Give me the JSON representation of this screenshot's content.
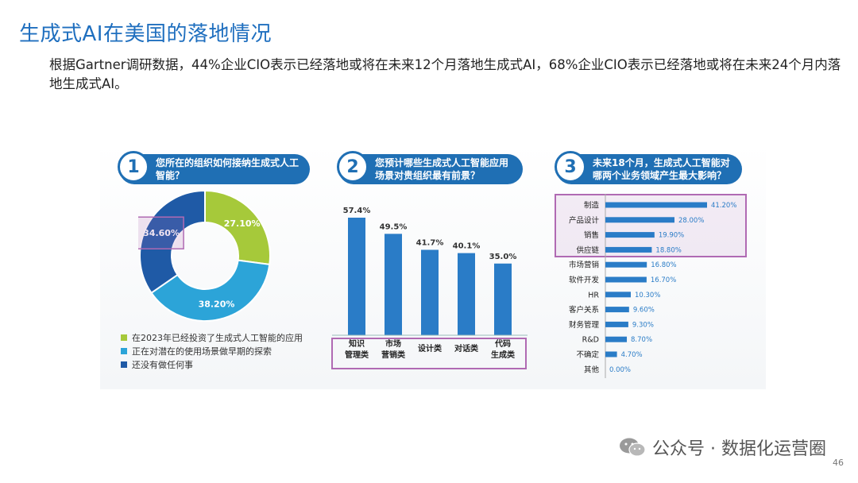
{
  "title": "生成式AI在美国的落地情况",
  "subtitle": "根据Gartner调研数据，44%企业CIO表示已经落地或将在未来12个月落地生成式AI，68%企业CIO表示已经落地或将在未来24个月内落地生成式AI。",
  "footer": {
    "text": "公众号 · 数据化运营圈",
    "page": "46"
  },
  "colors": {
    "title": "#1f6fbf",
    "green": "#a6c93a",
    "light_blue": "#2ca4d8",
    "dark_blue": "#1f5aa6",
    "highlight": "#b06ab3"
  },
  "chart_data": [
    {
      "type": "pie",
      "number": "1",
      "title": "您所在的组织如何接纳生成式人工智能？",
      "slices": [
        {
          "label": "在2023年已经投资了生成式人工智能的应用",
          "value": 27.1,
          "display": "27.10%",
          "color": "#a6c93a"
        },
        {
          "label": "正在对潜在的使用场景做早期的探索",
          "value": 38.2,
          "display": "38.20%",
          "color": "#2ca4d8"
        },
        {
          "label": "还没有做任何事",
          "value": 34.6,
          "display": "34.60%",
          "color": "#1f5aa6"
        }
      ]
    },
    {
      "type": "bar",
      "number": "2",
      "title": "您预计哪些生成式人工智能应用场景对贵组织最有前景？",
      "categories": [
        "知识管理类",
        "市场营销类",
        "设计类",
        "对话类",
        "代码生成类"
      ],
      "category_lines": [
        [
          "知识",
          "管理类"
        ],
        [
          "市场",
          "营销类"
        ],
        [
          "设计类"
        ],
        [
          "对话类"
        ],
        [
          "代码",
          "生成类"
        ]
      ],
      "values": [
        57.4,
        49.5,
        41.7,
        40.1,
        35.0
      ],
      "labels": [
        "57.4%",
        "49.5%",
        "41.7%",
        "40.1%",
        "35.0%"
      ]
    },
    {
      "type": "bar",
      "orientation": "horizontal",
      "number": "3",
      "title": "未来18个月，生成式人工智能对哪两个业务领域产生最大影响？",
      "categories": [
        "制造",
        "产品设计",
        "销售",
        "供应链",
        "市场营销",
        "软件开发",
        "HR",
        "客户关系",
        "财务管理",
        "R&D",
        "不确定",
        "其他"
      ],
      "values": [
        41.2,
        28.0,
        19.9,
        18.8,
        16.8,
        16.7,
        10.3,
        9.6,
        9.3,
        8.7,
        4.7,
        0.0
      ],
      "labels": [
        "41.20%",
        "28.00%",
        "19.90%",
        "18.80%",
        "16.80%",
        "16.70%",
        "10.30%",
        "9.60%",
        "9.30%",
        "8.70%",
        "4.70%",
        "0.00%"
      ]
    }
  ]
}
